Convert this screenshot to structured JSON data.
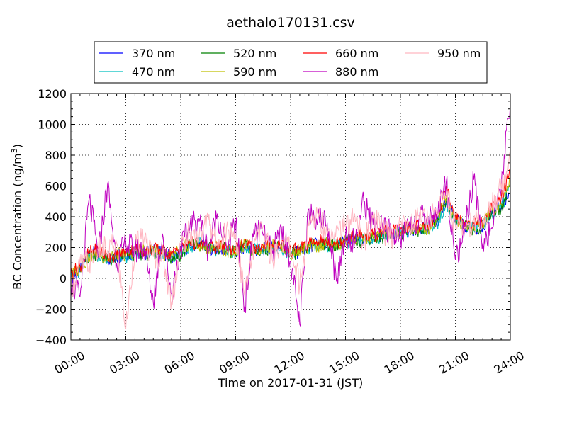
{
  "chart_data": {
    "type": "line",
    "title": "aethalo170131.csv",
    "xlabel": "Time on 2017-01-31 (JST)",
    "ylabel": "BC Concentration (ng/m",
    "ylabel_sup": "3",
    "ylabel_close": ")",
    "xlim": [
      0,
      24
    ],
    "ylim": [
      -400,
      1200
    ],
    "x_ticks": [
      0,
      3,
      6,
      9,
      12,
      15,
      18,
      21,
      24
    ],
    "x_tick_labels": [
      "00:00",
      "03:00",
      "06:00",
      "09:00",
      "12:00",
      "15:00",
      "18:00",
      "21:00",
      "24:00"
    ],
    "y_ticks": [
      -400,
      -200,
      0,
      200,
      400,
      600,
      800,
      1000,
      1200
    ],
    "y_tick_labels": [
      "−400",
      "−200",
      "0",
      "200",
      "400",
      "600",
      "800",
      "1000",
      "1200"
    ],
    "grid": true,
    "legend_position": "top, above plot",
    "x_samples": [
      0.0,
      0.5,
      1.0,
      1.5,
      2.0,
      2.5,
      3.0,
      3.5,
      4.0,
      4.5,
      5.0,
      5.5,
      6.0,
      6.5,
      7.0,
      7.5,
      8.0,
      8.5,
      9.0,
      9.5,
      10.0,
      10.5,
      11.0,
      11.5,
      12.0,
      12.5,
      13.0,
      13.5,
      14.0,
      14.5,
      15.0,
      15.5,
      16.0,
      16.5,
      17.0,
      17.5,
      18.0,
      18.5,
      19.0,
      19.5,
      20.0,
      20.5,
      21.0,
      21.5,
      22.0,
      22.5,
      23.0,
      23.5,
      24.0
    ],
    "series": [
      {
        "name": "370 nm",
        "color": "#0000ff",
        "values": [
          0,
          40,
          180,
          150,
          120,
          140,
          150,
          170,
          160,
          180,
          170,
          140,
          170,
          210,
          220,
          200,
          190,
          180,
          170,
          200,
          180,
          190,
          200,
          210,
          160,
          170,
          200,
          230,
          210,
          220,
          240,
          260,
          250,
          260,
          280,
          290,
          300,
          310,
          320,
          330,
          360,
          500,
          380,
          340,
          320,
          340,
          420,
          470,
          560
        ]
      },
      {
        "name": "470 nm",
        "color": "#00bfbf",
        "values": [
          10,
          50,
          160,
          140,
          130,
          150,
          140,
          160,
          170,
          170,
          160,
          150,
          160,
          200,
          230,
          210,
          180,
          170,
          180,
          190,
          190,
          200,
          190,
          200,
          150,
          180,
          190,
          220,
          200,
          230,
          230,
          250,
          260,
          250,
          270,
          280,
          310,
          300,
          330,
          320,
          350,
          480,
          370,
          330,
          330,
          350,
          410,
          460,
          600
        ]
      },
      {
        "name": "520 nm",
        "color": "#008000",
        "values": [
          5,
          60,
          150,
          160,
          110,
          130,
          160,
          150,
          150,
          160,
          180,
          130,
          150,
          220,
          210,
          190,
          200,
          190,
          160,
          210,
          170,
          180,
          210,
          190,
          170,
          160,
          210,
          240,
          220,
          210,
          250,
          240,
          250,
          270,
          260,
          300,
          290,
          320,
          310,
          340,
          370,
          520,
          360,
          350,
          310,
          330,
          430,
          450,
          620
        ]
      },
      {
        "name": "590 nm",
        "color": "#bfbf00",
        "values": [
          20,
          70,
          140,
          170,
          120,
          160,
          150,
          180,
          190,
          200,
          160,
          140,
          180,
          230,
          200,
          200,
          210,
          180,
          170,
          220,
          180,
          200,
          210,
          220,
          150,
          190,
          200,
          210,
          230,
          200,
          240,
          250,
          270,
          260,
          290,
          290,
          300,
          330,
          320,
          320,
          380,
          540,
          390,
          340,
          340,
          360,
          440,
          480,
          650
        ]
      },
      {
        "name": "660 nm",
        "color": "#ff0000",
        "values": [
          30,
          80,
          170,
          190,
          140,
          150,
          170,
          190,
          180,
          190,
          180,
          160,
          190,
          240,
          220,
          220,
          200,
          200,
          190,
          230,
          200,
          210,
          220,
          230,
          170,
          200,
          220,
          250,
          240,
          230,
          260,
          270,
          280,
          280,
          300,
          310,
          320,
          340,
          340,
          350,
          400,
          600,
          400,
          360,
          360,
          380,
          460,
          520,
          700
        ]
      },
      {
        "name": "880 nm",
        "color": "#bf00bf",
        "values": [
          -40,
          -120,
          520,
          150,
          610,
          100,
          230,
          180,
          200,
          -160,
          290,
          -100,
          200,
          330,
          390,
          180,
          420,
          200,
          350,
          -180,
          320,
          280,
          160,
          330,
          110,
          -300,
          450,
          390,
          360,
          -20,
          280,
          240,
          500,
          350,
          320,
          300,
          260,
          370,
          380,
          400,
          430,
          630,
          120,
          320,
          640,
          230,
          330,
          580,
          1150
        ]
      },
      {
        "name": "950 nm",
        "color": "#ffb6c1",
        "values": [
          -60,
          90,
          100,
          200,
          180,
          230,
          -330,
          220,
          250,
          140,
          150,
          -150,
          210,
          300,
          260,
          380,
          230,
          330,
          280,
          -120,
          210,
          340,
          120,
          240,
          200,
          -40,
          340,
          420,
          290,
          340,
          330,
          420,
          220,
          390,
          310,
          270,
          360,
          330,
          410,
          370,
          440,
          560,
          340,
          330,
          380,
          370,
          470,
          580,
          790
        ]
      }
    ]
  }
}
